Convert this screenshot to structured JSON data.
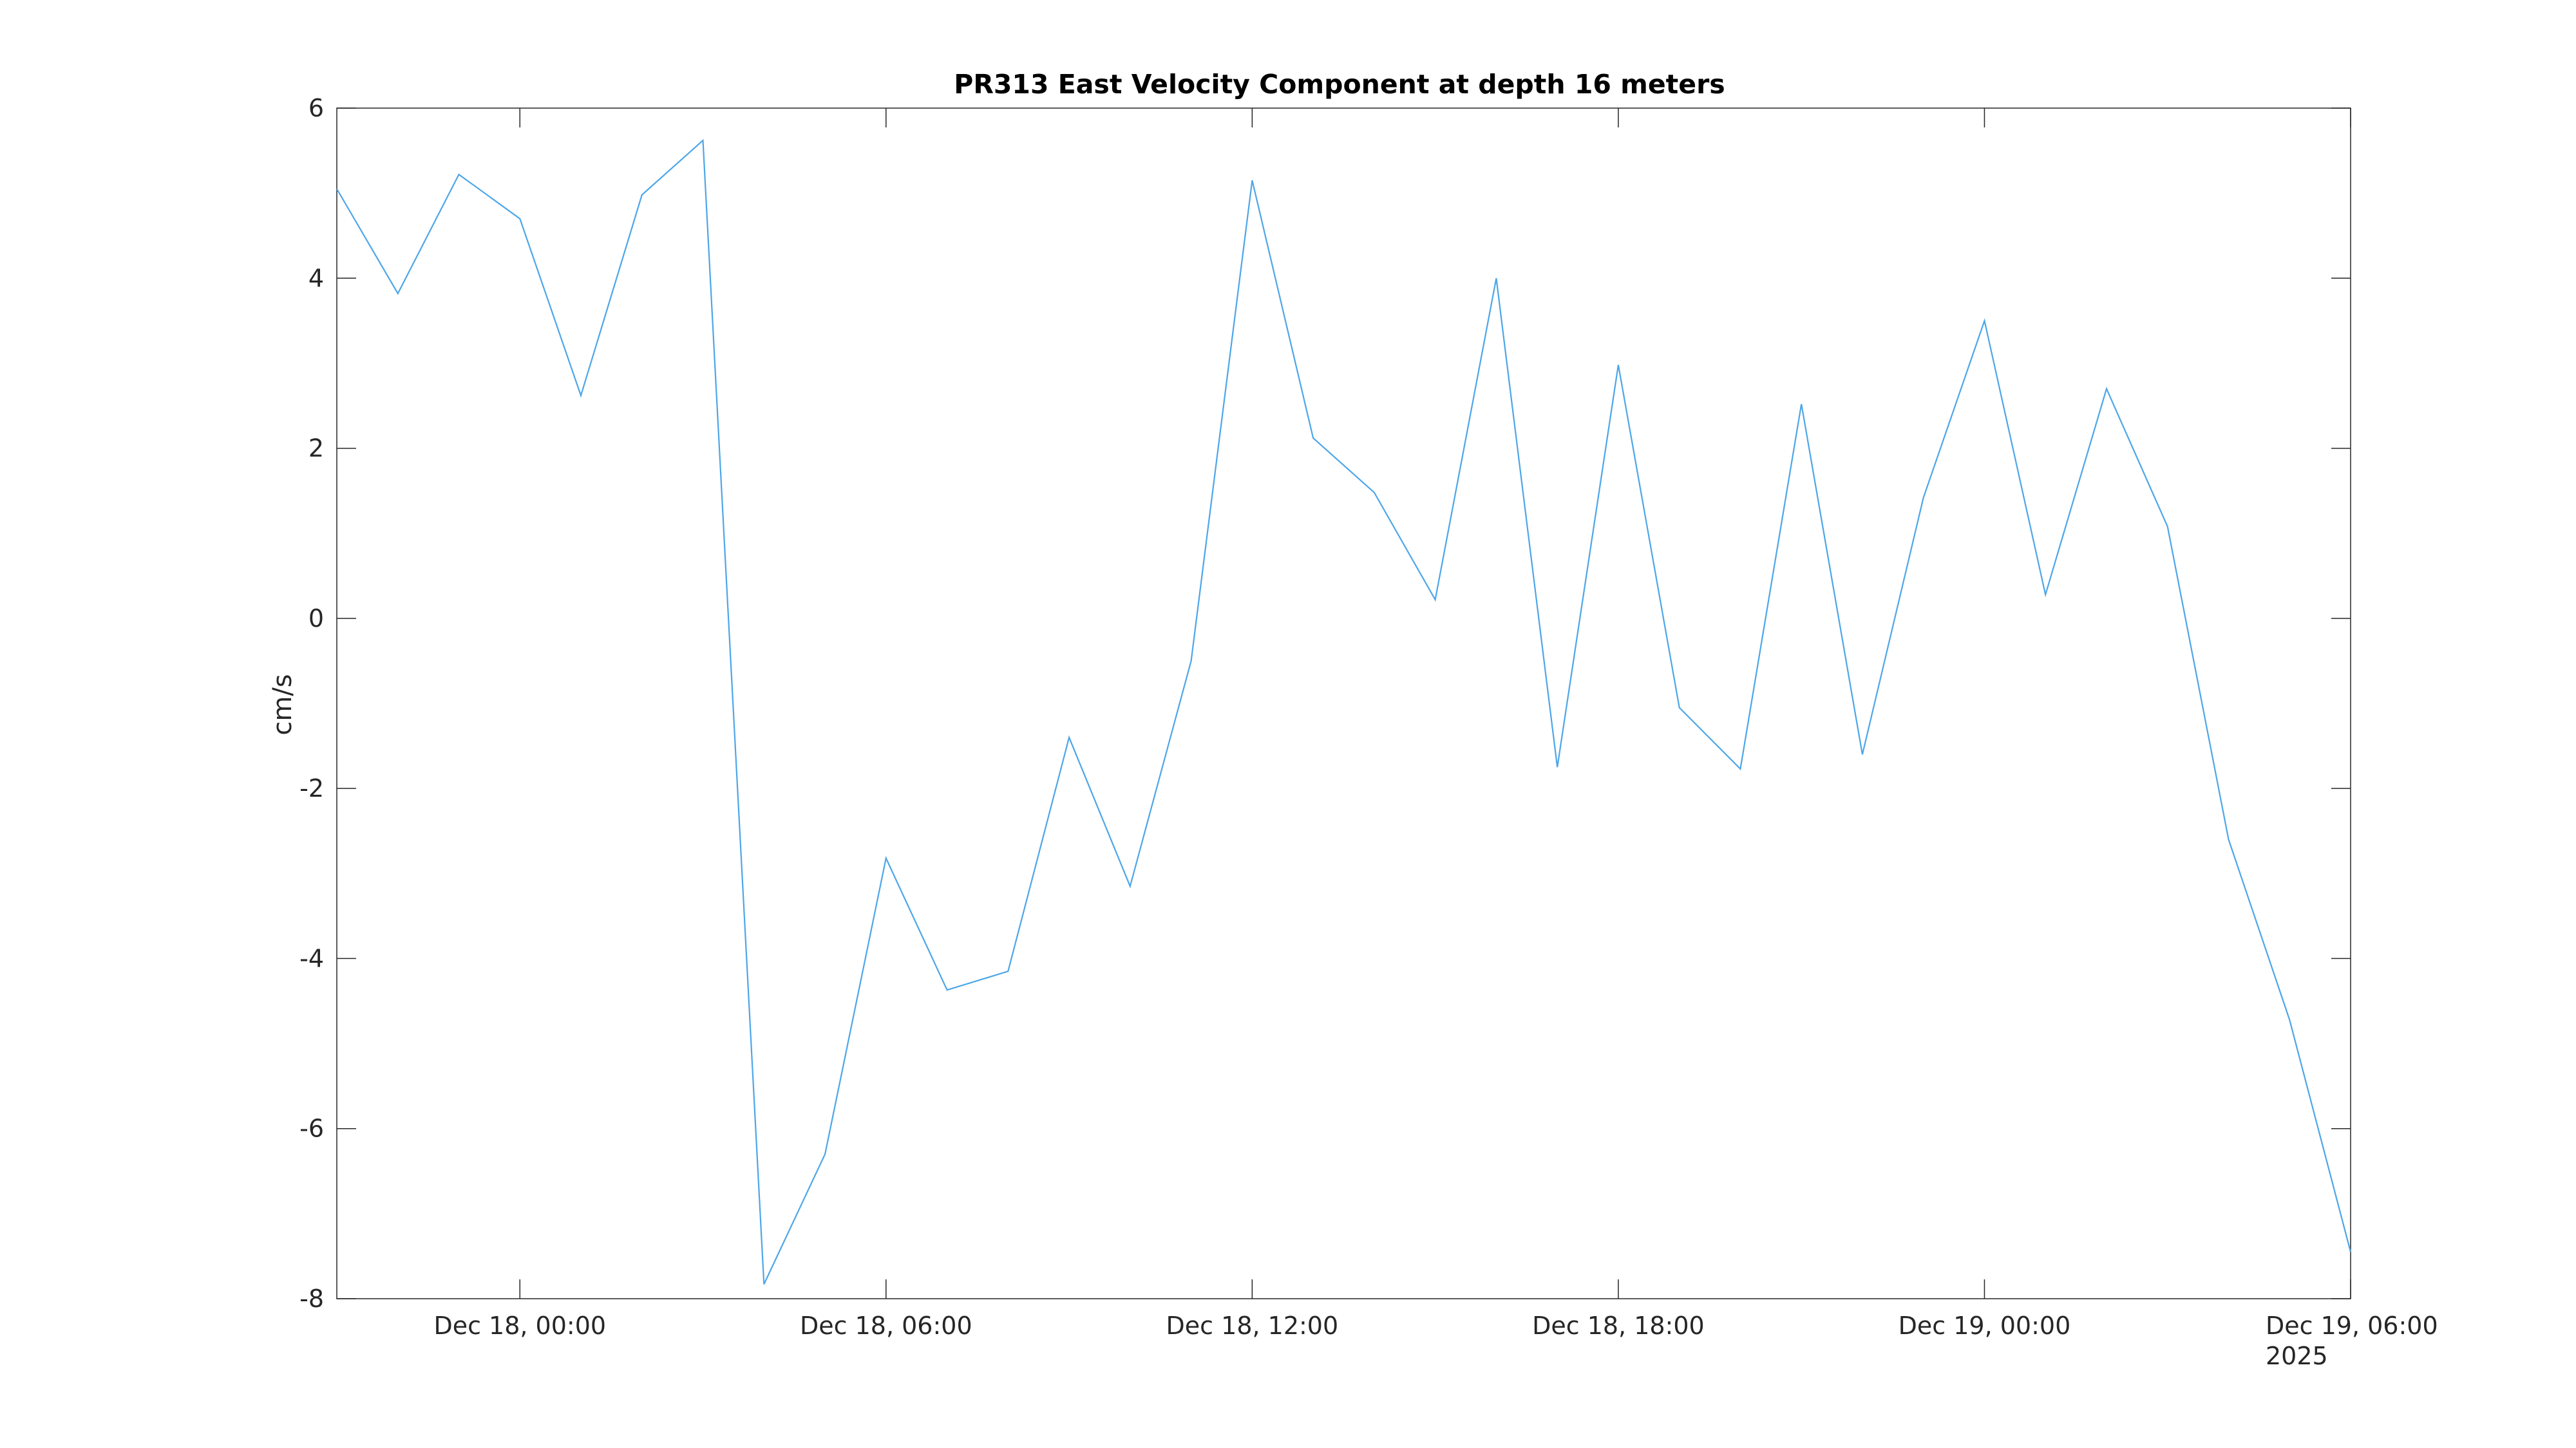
{
  "chart_data": {
    "type": "line",
    "title": "PR313 East Velocity Component at depth 16 meters",
    "xlabel": "",
    "ylabel": "cm/s",
    "ylim": [
      -8,
      6
    ],
    "yticks": [
      "6",
      "4",
      "2",
      "0",
      "-2",
      "-4",
      "-6",
      "-8"
    ],
    "xlim": [
      "2025-12-17 21:00",
      "2025-12-19 06:00"
    ],
    "xticks": [
      "Dec 18, 00:00",
      "Dec 18, 06:00",
      "Dec 18, 12:00",
      "Dec 18, 18:00",
      "Dec 19, 00:00",
      "Dec 19, 06:00"
    ],
    "xtick_year": "2025",
    "grid": false,
    "series": [
      {
        "color": "#4da6e8",
        "x": [
          "2025-12-17 21:00",
          "2025-12-17 22:00",
          "2025-12-17 23:00",
          "2025-12-18 00:00",
          "2025-12-18 01:00",
          "2025-12-18 02:00",
          "2025-12-18 03:00",
          "2025-12-18 04:00",
          "2025-12-18 05:00",
          "2025-12-18 06:00",
          "2025-12-18 07:00",
          "2025-12-18 08:00",
          "2025-12-18 09:00",
          "2025-12-18 10:00",
          "2025-12-18 11:00",
          "2025-12-18 12:00",
          "2025-12-18 13:00",
          "2025-12-18 14:00",
          "2025-12-18 15:00",
          "2025-12-18 16:00",
          "2025-12-18 17:00",
          "2025-12-18 18:00",
          "2025-12-18 19:00",
          "2025-12-18 20:00",
          "2025-12-18 21:00",
          "2025-12-18 22:00",
          "2025-12-18 23:00",
          "2025-12-19 00:00",
          "2025-12-19 01:00",
          "2025-12-19 02:00",
          "2025-12-19 03:00",
          "2025-12-19 04:00",
          "2025-12-19 05:00",
          "2025-12-19 06:00"
        ],
        "y": [
          5.05,
          3.82,
          5.22,
          4.7,
          2.62,
          4.98,
          5.62,
          -7.83,
          -6.3,
          -2.82,
          -4.37,
          -4.15,
          -1.4,
          -3.15,
          -0.5,
          5.15,
          2.12,
          1.48,
          0.22,
          4.0,
          -1.75,
          2.98,
          -1.05,
          -1.77,
          2.52,
          -1.6,
          1.42,
          3.5,
          0.28,
          2.7,
          1.08,
          -2.6,
          -4.72,
          -7.45
        ]
      }
    ]
  }
}
